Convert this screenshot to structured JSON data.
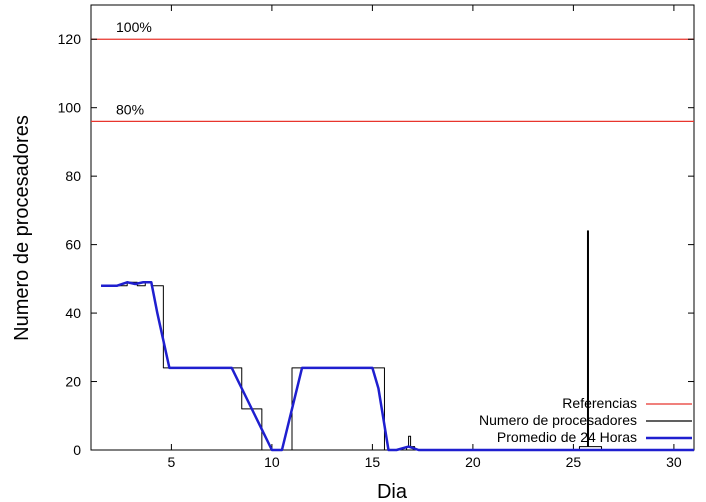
{
  "chart_data": {
    "type": "line",
    "xlabel": "Dia",
    "ylabel": "Numero de procesadores",
    "xlim": [
      1,
      31
    ],
    "ylim": [
      0,
      130
    ],
    "xticks": [
      5,
      10,
      15,
      20,
      25,
      30
    ],
    "yticks": [
      0,
      20,
      40,
      60,
      80,
      100,
      120
    ],
    "references": [
      {
        "value": 120,
        "label": "100%"
      },
      {
        "value": 96,
        "label": "80%"
      }
    ],
    "legend": {
      "position": "bottom-right",
      "entries": [
        "Referencias",
        "Numero de procesadores",
        "Promedio de 24 Horas"
      ]
    },
    "series": [
      {
        "name": "Numero de procesadores",
        "style": "step",
        "color": "#000000",
        "x": [
          1.5,
          2.8,
          3.0,
          3.3,
          3.7,
          4.0,
          4.2,
          4.6,
          8.0,
          8.5,
          9.5,
          10.0,
          11.0,
          15.3,
          15.6,
          16.7,
          16.8,
          16.9,
          17.1,
          25.3,
          25.7,
          25.75,
          26.4,
          31.0
        ],
        "y": [
          48,
          49,
          49,
          48,
          49,
          48,
          48,
          24,
          24,
          12,
          0,
          0,
          24,
          24,
          0,
          1,
          4,
          1,
          0,
          1,
          64,
          1,
          0,
          0
        ]
      },
      {
        "name": "Promedio de 24 Horas",
        "style": "line",
        "color": "#1f1fcf",
        "x": [
          1.5,
          2.3,
          2.8,
          3.2,
          3.6,
          4.0,
          4.3,
          4.9,
          6.0,
          7.5,
          8.0,
          8.5,
          9.5,
          10.0,
          10.5,
          11.0,
          11.5,
          12.5,
          14.0,
          15.0,
          15.3,
          15.8,
          16.2,
          16.8,
          17.3,
          20.0,
          25.0,
          26.0,
          31.0
        ],
        "y": [
          48,
          48,
          49,
          48.5,
          49,
          49,
          40,
          24,
          24,
          24,
          24,
          18,
          6,
          0,
          0,
          12,
          24,
          24,
          24,
          24,
          18,
          0,
          0,
          1,
          0,
          0,
          0,
          0,
          0
        ]
      }
    ]
  },
  "colors": {
    "reference": "#e8352d",
    "processors": "#000000",
    "average": "#1f1fcf"
  }
}
